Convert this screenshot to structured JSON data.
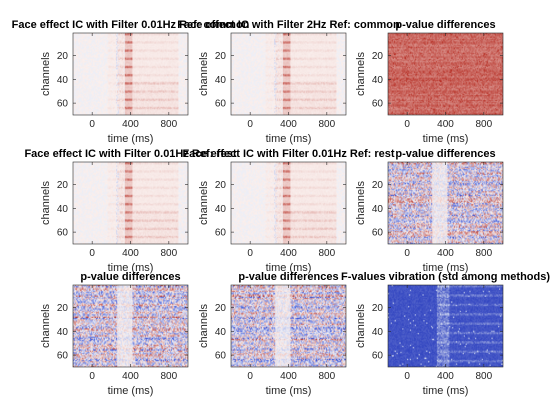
{
  "figure": {
    "background": "#ffffff"
  },
  "chart_data": [
    {
      "type": "heatmap",
      "title": "Face effect IC with Filter 0.01Hz Ref: common",
      "xlabel": "time (ms)",
      "ylabel": "channels",
      "xticks": [
        "0",
        "400",
        "800"
      ],
      "yticks": [
        "20",
        "40",
        "60"
      ],
      "xlim": [
        -200,
        1000
      ],
      "ylim": [
        1,
        70
      ],
      "colormap": "diverging blue-white-red",
      "pattern": "evoked"
    },
    {
      "type": "heatmap",
      "title": "Face effect IC with Filter 2Hz Ref: common",
      "xlabel": "time (ms)",
      "ylabel": "channels",
      "xticks": [
        "0",
        "400",
        "800"
      ],
      "yticks": [
        "20",
        "40",
        "60"
      ],
      "xlim": [
        -200,
        1000
      ],
      "ylim": [
        1,
        70
      ],
      "colormap": "diverging blue-white-red",
      "pattern": "evoked"
    },
    {
      "type": "heatmap",
      "title": "p-value differences",
      "xlabel": "time (ms)",
      "ylabel": "channels",
      "xticks": [
        "0",
        "400",
        "800"
      ],
      "yticks": [
        "20",
        "40",
        "60"
      ],
      "xlim": [
        -200,
        1000
      ],
      "ylim": [
        1,
        70
      ],
      "colormap": "diverging blue-white-red",
      "pattern": "saturated-red"
    },
    {
      "type": "heatmap",
      "title": "Face effect IC with Filter 0.01Hz Ref: rest",
      "xlabel": "time (ms)",
      "ylabel": "channels",
      "xticks": [
        "0",
        "400",
        "800"
      ],
      "yticks": [
        "20",
        "40",
        "60"
      ],
      "xlim": [
        -200,
        1000
      ],
      "ylim": [
        1,
        70
      ],
      "colormap": "diverging blue-white-red",
      "pattern": "evoked"
    },
    {
      "type": "heatmap",
      "title": "Face effect IC with Filter 0.01Hz Ref: rest",
      "xlabel": "time (ms)",
      "ylabel": "channels",
      "xticks": [
        "0",
        "400",
        "800"
      ],
      "yticks": [
        "20",
        "40",
        "60"
      ],
      "xlim": [
        -200,
        1000
      ],
      "ylim": [
        1,
        70
      ],
      "colormap": "diverging blue-white-red",
      "pattern": "evoked"
    },
    {
      "type": "heatmap",
      "title": "p-value differences",
      "xlabel": "time (ms)",
      "ylabel": "channels",
      "xticks": [
        "0",
        "400",
        "800"
      ],
      "yticks": [
        "20",
        "40",
        "60"
      ],
      "xlim": [
        -200,
        1000
      ],
      "ylim": [
        1,
        70
      ],
      "colormap": "diverging blue-white-red",
      "pattern": "mixed"
    },
    {
      "type": "heatmap",
      "title": "p-value differences",
      "xlabel": "time (ms)",
      "ylabel": "channels",
      "xticks": [
        "0",
        "400",
        "800"
      ],
      "yticks": [
        "20",
        "40",
        "60"
      ],
      "xlim": [
        -200,
        1000
      ],
      "ylim": [
        1,
        70
      ],
      "colormap": "diverging blue-white-red",
      "pattern": "mixed"
    },
    {
      "type": "heatmap",
      "title": "p-value differences",
      "xlabel": "time (ms)",
      "ylabel": "channels",
      "xticks": [
        "0",
        "400",
        "800"
      ],
      "yticks": [
        "20",
        "40",
        "60"
      ],
      "xlim": [
        -200,
        1000
      ],
      "ylim": [
        1,
        70
      ],
      "colormap": "diverging blue-white-red",
      "pattern": "mixed"
    },
    {
      "type": "heatmap",
      "title": "F-values vibration (std among methods)",
      "xlabel": "time (ms)",
      "ylabel": "channels",
      "xticks": [
        "0",
        "400",
        "800"
      ],
      "yticks": [
        "20",
        "40",
        "60"
      ],
      "xlim": [
        -200,
        1000
      ],
      "ylim": [
        1,
        70
      ],
      "colormap": "blue-white",
      "pattern": "blue-vibration"
    }
  ]
}
